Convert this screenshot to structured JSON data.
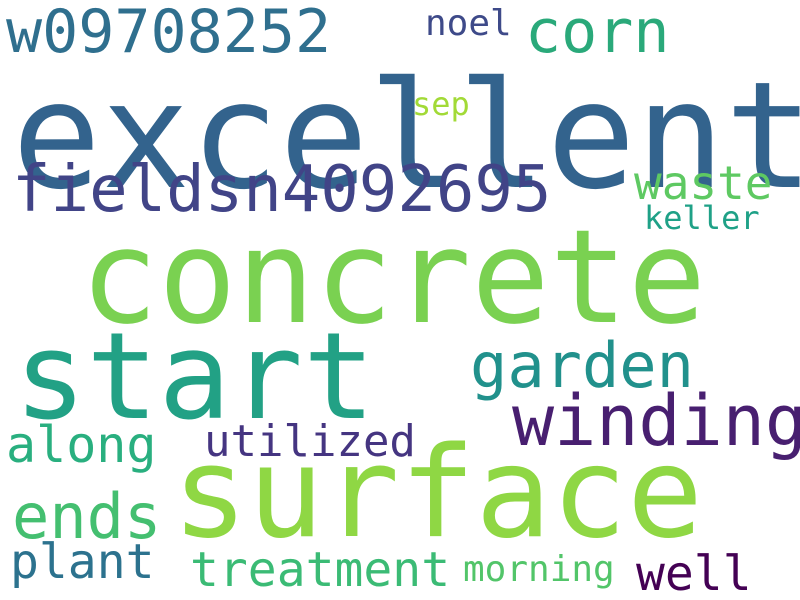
{
  "words": {
    "excellent": "excellent",
    "concrete": "concrete",
    "start": "start",
    "surface": "surface",
    "w09708252": "w09708252",
    "corn": "corn",
    "noel": "noel",
    "sep": "sep",
    "fieldsn": "fieldsn4092695",
    "waste": "waste",
    "keller": "keller",
    "garden": "garden",
    "winding": "winding",
    "along": "along",
    "utilized": "utilized",
    "ends": "ends",
    "plant": "plant",
    "treatment": "treatment",
    "morning": "morning",
    "well": "well"
  },
  "colors": {
    "background": "#ffffff",
    "excellent": "#33638d",
    "concrete": "#7ad151",
    "start": "#22a185",
    "surface": "#8fd744",
    "w09708252": "#2f6f8e",
    "corn": "#2aa97a",
    "noel": "#3e4a89",
    "sep": "#a2da37",
    "fieldsn": "#414487",
    "waste": "#5ec962",
    "keller": "#1fa187",
    "garden": "#21918c",
    "winding": "#481f70",
    "along": "#29af7f",
    "utilized": "#453581",
    "ends": "#44bf70",
    "plant": "#2c728e",
    "treatment": "#3bbb75",
    "morning": "#52c569",
    "well": "#440154"
  }
}
